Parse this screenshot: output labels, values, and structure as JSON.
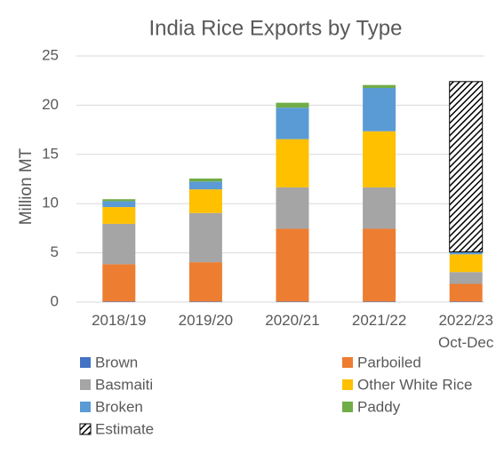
{
  "chart_data": {
    "type": "stacked_bar",
    "title": "India Rice Exports by Type",
    "ylabel": "Million MT",
    "categories": [
      "2018/19",
      "2019/20",
      "2020/21",
      "2021/22",
      "2022/23\nOct-Dec"
    ],
    "series": [
      {
        "name": "Brown",
        "color": "#4472c4",
        "values": [
          0.05,
          0.05,
          0.05,
          0.05,
          0.05
        ]
      },
      {
        "name": "Parboiled",
        "color": "#ed7d31",
        "values": [
          3.8,
          4.0,
          7.4,
          7.4,
          1.8
        ]
      },
      {
        "name": "Basmaiti",
        "color": "#a5a5a5",
        "values": [
          4.1,
          5.0,
          4.2,
          4.2,
          1.2
        ]
      },
      {
        "name": "Other White Rice",
        "color": "#ffc000",
        "values": [
          1.7,
          2.4,
          4.9,
          5.7,
          1.8
        ]
      },
      {
        "name": "Broken",
        "color": "#5b9bd5",
        "values": [
          0.6,
          0.8,
          3.2,
          4.4,
          0.2
        ]
      },
      {
        "name": "Paddy",
        "color": "#70ad47",
        "values": [
          0.2,
          0.3,
          0.5,
          0.3,
          0.05
        ]
      },
      {
        "name": "Estimate",
        "color": "#000000",
        "pattern": "hatch",
        "values": [
          null,
          null,
          null,
          null,
          17.3
        ]
      }
    ],
    "ylim": [
      0,
      25
    ],
    "yticks": [
      0,
      5,
      10,
      15,
      20,
      25
    ],
    "grid": true
  }
}
